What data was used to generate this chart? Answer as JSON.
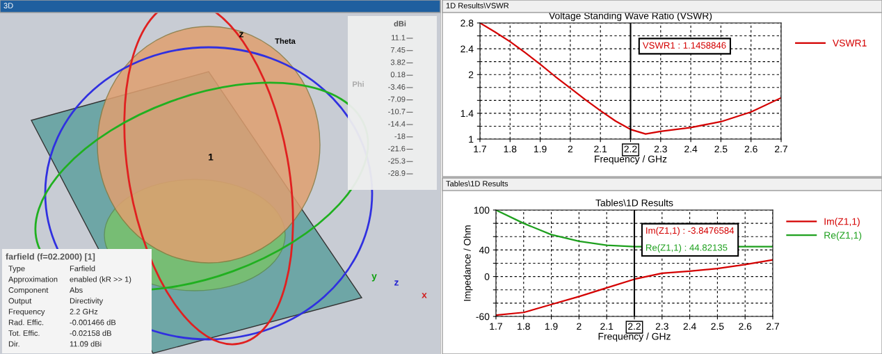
{
  "chart_data": [
    {
      "type": "other",
      "title": "3D",
      "annotations": [
        "farfield (f=02.2000) [1]",
        "Type",
        "Farfield",
        "Approximation",
        "enabled (kR >> 1)",
        "Component",
        "Abs",
        "Output",
        "Directivity",
        "Frequency",
        "2.2 GHz",
        "Rad. Effic.",
        "-0.001466 dB",
        "Tot. Effic.",
        "-0.02158 dB",
        "Dir.",
        "11.09 dBi",
        "dBi",
        "11.1",
        "7.45",
        "3.82",
        "0.18",
        "-3.46",
        "-7.09",
        "-10.7",
        "-14.4",
        "-18",
        "-21.6",
        "-25.3",
        "-28.9",
        "z",
        "Theta",
        "Phi",
        "1",
        "y",
        "z",
        "x"
      ]
    },
    {
      "type": "line",
      "title": "Voltage Standing Wave Ratio (VSWR)",
      "xlabel": "Frequency / GHz",
      "x": [
        1.7,
        1.75,
        1.8,
        1.85,
        1.9,
        1.95,
        2.0,
        2.05,
        2.1,
        2.15,
        2.2,
        2.25,
        2.3,
        2.4,
        2.5,
        2.6,
        2.7
      ],
      "series": [
        {
          "name": "VSWR1",
          "color": "#d40000",
          "values": [
            2.8,
            2.66,
            2.51,
            2.34,
            2.16,
            1.97,
            1.79,
            1.61,
            1.44,
            1.28,
            1.15,
            1.08,
            1.12,
            1.18,
            1.27,
            1.42,
            1.64
          ]
        }
      ],
      "xlim": [
        1.7,
        2.7
      ],
      "xticks": [
        1.7,
        1.8,
        1.9,
        2,
        2.1,
        2.2,
        2.3,
        2.4,
        2.5,
        2.6,
        2.7
      ],
      "ylim": [
        1,
        2.8
      ],
      "yticks": [
        1,
        {
          "value": 1.2,
          "label": null
        },
        1.4,
        {
          "value": 1.6,
          "label": null
        },
        {
          "value": 1.8,
          "label": null
        },
        2,
        {
          "value": 2.2,
          "label": null
        },
        2.4,
        {
          "value": 2.6,
          "label": null
        },
        2.8
      ],
      "ref_lines": [
        {
          "axis": "x",
          "value": 2.2,
          "color": "#000000"
        }
      ],
      "annotations": [
        "1D Results\\VSWR",
        "VSWR1 : 1.1458846"
      ],
      "grid": true,
      "legend": "right"
    },
    {
      "type": "line",
      "title": "Tables\\1D Results",
      "xlabel": "Frequency / GHz",
      "ylabel": "Impedance / Ohm",
      "x": [
        1.7,
        1.8,
        1.9,
        2.0,
        2.1,
        2.2,
        2.3,
        2.4,
        2.5,
        2.6,
        2.7
      ],
      "series": [
        {
          "name": "Im(Z1,1)",
          "color": "#d40000",
          "values": [
            -58,
            -54,
            -42,
            -30,
            -17,
            -4,
            5,
            8,
            12,
            18,
            25
          ]
        },
        {
          "name": "Re(Z1,1)",
          "color": "#1ea01e",
          "x": [
            1.7,
            1.8,
            1.9,
            2.0,
            2.1,
            2.2,
            2.6,
            2.7
          ],
          "values": [
            100,
            80,
            63,
            53,
            47,
            45,
            45,
            45
          ]
        }
      ],
      "xlim": [
        1.7,
        2.7
      ],
      "xticks": [
        1.7,
        1.8,
        1.9,
        2,
        2.1,
        2.2,
        2.3,
        2.4,
        2.5,
        2.6,
        2.7
      ],
      "ylim": [
        -60,
        100
      ],
      "yticks": [
        -60,
        {
          "value": -40,
          "label": null
        },
        {
          "value": -20,
          "label": null
        },
        0,
        {
          "value": 20,
          "label": null
        },
        40,
        {
          "value": 60,
          "label": null
        },
        {
          "value": 80,
          "label": null
        },
        100
      ],
      "ref_lines": [
        {
          "axis": "x",
          "value": 2.2,
          "color": "#000000"
        }
      ],
      "annotations": [
        "Tables\\1D Results",
        "Im(Z1,1) : -3.8476584",
        "Re(Z1,1) : 44.82135"
      ],
      "grid": true,
      "legend": "right"
    }
  ]
}
